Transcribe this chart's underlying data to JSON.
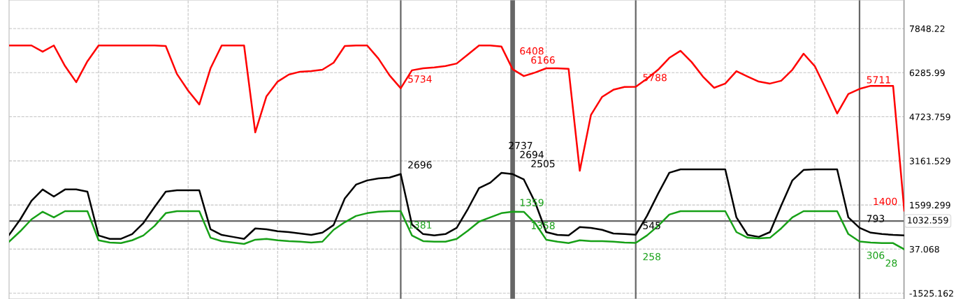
{
  "chart_data": {
    "type": "line",
    "categories": [
      null,
      null,
      null,
      null,
      null,
      null,
      null,
      null,
      null,
      null,
      null,
      null,
      null,
      null,
      null,
      null,
      null,
      null,
      null,
      null,
      null,
      null,
      null,
      null,
      null,
      null,
      null,
      null,
      null,
      null,
      null,
      null,
      null,
      null,
      null,
      null,
      null,
      null,
      null,
      null,
      null,
      null,
      null,
      null,
      null,
      null,
      null,
      null,
      null,
      null,
      null,
      null,
      null,
      null,
      null,
      null,
      null,
      null,
      null,
      null,
      null,
      null,
      null,
      null,
      null,
      null,
      null,
      null,
      null,
      null,
      null,
      null,
      null,
      null,
      null,
      null,
      null,
      null,
      null,
      null,
      null
    ],
    "ylim": [
      -1730,
      8860
    ],
    "yticks": [
      7848.22,
      6285.99,
      4723.759,
      3161.529,
      1599.299,
      37.068,
      -1525.162
    ],
    "tick_labels": "y",
    "grid": true,
    "line_style": "solid",
    "marker": "none",
    "series": [
      {
        "color": "#ff0000",
        "values": [
          7250,
          7250,
          7250,
          7030,
          7250,
          6520,
          5950,
          6690,
          7250,
          7250,
          7250,
          7250,
          7250,
          7250,
          7230,
          6240,
          5650,
          5160,
          6440,
          7250,
          7250,
          7250,
          4170,
          5450,
          5970,
          6220,
          6320,
          6340,
          6390,
          6640,
          7230,
          7250,
          7250,
          6790,
          6190,
          5734,
          6370,
          6440,
          6470,
          6520,
          6610,
          6930,
          7250,
          7250,
          7210,
          6408,
          6166,
          6290,
          6440,
          6440,
          6420,
          2810,
          4790,
          5430,
          5680,
          5780,
          5788,
          6070,
          6390,
          6810,
          7060,
          6660,
          6150,
          5750,
          5900,
          6340,
          6150,
          5970,
          5900,
          6000,
          6390,
          6960,
          6520,
          5700,
          4840,
          5530,
          5711,
          5820,
          5820,
          5820,
          1400
        ],
        "value_labels": [
          null,
          null,
          null,
          null,
          null,
          null,
          null,
          null,
          null,
          null,
          null,
          null,
          null,
          null,
          null,
          null,
          null,
          null,
          null,
          null,
          null,
          null,
          null,
          null,
          null,
          null,
          null,
          null,
          null,
          null,
          null,
          null,
          null,
          null,
          null,
          "5734",
          null,
          null,
          null,
          null,
          null,
          null,
          null,
          null,
          null,
          "6408",
          "6166",
          null,
          null,
          null,
          null,
          null,
          null,
          null,
          null,
          null,
          "5788",
          null,
          null,
          null,
          null,
          null,
          null,
          null,
          null,
          null,
          null,
          null,
          null,
          null,
          null,
          null,
          null,
          null,
          null,
          null,
          "5711",
          null,
          null,
          null,
          "1400"
        ]
      },
      {
        "color": "#000000",
        "values": [
          540,
          1090,
          1750,
          2150,
          1900,
          2150,
          2150,
          2070,
          520,
          400,
          400,
          570,
          960,
          1530,
          2070,
          2120,
          2120,
          2120,
          740,
          540,
          470,
          400,
          770,
          740,
          670,
          640,
          590,
          540,
          620,
          890,
          1830,
          2320,
          2470,
          2540,
          2570,
          2696,
          910,
          570,
          520,
          570,
          790,
          1460,
          2200,
          2390,
          2737,
          2694,
          2505,
          1700,
          640,
          540,
          520,
          820,
          790,
          720,
          590,
          570,
          545,
          1210,
          2000,
          2740,
          2860,
          2860,
          2860,
          2860,
          2860,
          1160,
          540,
          470,
          640,
          1580,
          2470,
          2840,
          2860,
          2860,
          2860,
          1160,
          793,
          620,
          570,
          540,
          520
        ],
        "value_labels": [
          null,
          null,
          null,
          null,
          null,
          null,
          null,
          null,
          null,
          null,
          null,
          null,
          null,
          null,
          null,
          null,
          null,
          null,
          null,
          null,
          null,
          null,
          null,
          null,
          null,
          null,
          null,
          null,
          null,
          null,
          null,
          null,
          null,
          null,
          null,
          "2696",
          null,
          null,
          null,
          null,
          null,
          null,
          null,
          null,
          "2737",
          "2694",
          "2505",
          null,
          null,
          null,
          null,
          null,
          null,
          null,
          null,
          null,
          "545",
          null,
          null,
          null,
          null,
          null,
          null,
          null,
          null,
          null,
          null,
          null,
          null,
          null,
          null,
          null,
          null,
          null,
          null,
          null,
          "793",
          null,
          null,
          null,
          null
        ]
      },
      {
        "color": "#17a017",
        "values": [
          300,
          670,
          1090,
          1360,
          1160,
          1380,
          1380,
          1380,
          350,
          270,
          250,
          350,
          520,
          860,
          1310,
          1380,
          1380,
          1380,
          440,
          320,
          270,
          220,
          370,
          400,
          350,
          320,
          300,
          270,
          300,
          720,
          990,
          1210,
          1310,
          1360,
          1380,
          1381,
          520,
          320,
          300,
          300,
          400,
          690,
          1010,
          1160,
          1310,
          1359,
          1358,
          960,
          370,
          300,
          250,
          350,
          320,
          320,
          300,
          270,
          258,
          520,
          860,
          1260,
          1380,
          1380,
          1380,
          1380,
          1380,
          640,
          440,
          420,
          440,
          770,
          1160,
          1380,
          1380,
          1380,
          1380,
          570,
          306,
          270,
          250,
          250,
          28
        ],
        "value_labels": [
          null,
          null,
          null,
          null,
          null,
          null,
          null,
          null,
          null,
          null,
          null,
          null,
          null,
          null,
          null,
          null,
          null,
          null,
          null,
          null,
          null,
          null,
          null,
          null,
          null,
          null,
          null,
          null,
          null,
          null,
          null,
          null,
          null,
          null,
          null,
          "1381",
          null,
          null,
          null,
          null,
          null,
          null,
          null,
          null,
          null,
          "1359",
          "1358",
          null,
          null,
          null,
          null,
          null,
          null,
          null,
          null,
          null,
          "258",
          null,
          null,
          null,
          null,
          null,
          null,
          null,
          null,
          null,
          null,
          null,
          null,
          null,
          null,
          null,
          null,
          null,
          null,
          null,
          "306",
          null,
          null,
          null,
          "28"
        ]
      }
    ],
    "ref_lines": [
      {
        "axis": "y",
        "value": 1032.559,
        "label": "1032.559",
        "color": "#666666"
      }
    ]
  }
}
